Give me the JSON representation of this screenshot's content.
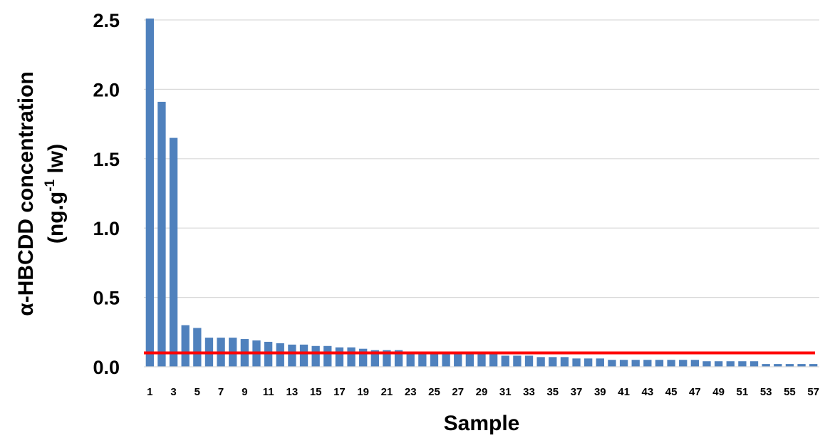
{
  "chart_data": {
    "type": "bar",
    "title": "",
    "xlabel": "Sample",
    "ylabel_line1": "α-HBCDD concentration",
    "ylabel_line2_prefix": "(ng.g",
    "ylabel_line2_sup": "-1",
    "ylabel_line2_suffix": " lw)",
    "ylim": [
      0,
      2.5
    ],
    "yticks": [
      "0.0",
      "0.5",
      "1.0",
      "1.5",
      "2.0",
      "2.5"
    ],
    "grid": true,
    "legend": false,
    "categories": [
      "1",
      "2",
      "3",
      "4",
      "5",
      "6",
      "7",
      "8",
      "9",
      "10",
      "11",
      "12",
      "13",
      "14",
      "15",
      "16",
      "17",
      "18",
      "19",
      "20",
      "21",
      "22",
      "23",
      "24",
      "25",
      "26",
      "27",
      "28",
      "29",
      "30",
      "31",
      "32",
      "33",
      "34",
      "35",
      "36",
      "37",
      "38",
      "39",
      "40",
      "41",
      "42",
      "43",
      "44",
      "45",
      "46",
      "47",
      "48",
      "49",
      "50",
      "51",
      "52",
      "53",
      "54",
      "55",
      "56",
      "57"
    ],
    "xtick_labels": [
      "1",
      "3",
      "5",
      "7",
      "9",
      "11",
      "13",
      "15",
      "17",
      "19",
      "21",
      "23",
      "25",
      "27",
      "29",
      "31",
      "33",
      "35",
      "37",
      "39",
      "41",
      "43",
      "45",
      "47",
      "49",
      "51",
      "53",
      "55",
      "57"
    ],
    "values": [
      2.51,
      1.91,
      1.65,
      0.3,
      0.28,
      0.21,
      0.21,
      0.21,
      0.2,
      0.19,
      0.18,
      0.17,
      0.16,
      0.16,
      0.15,
      0.15,
      0.14,
      0.14,
      0.13,
      0.12,
      0.12,
      0.12,
      0.11,
      0.11,
      0.11,
      0.1,
      0.1,
      0.1,
      0.09,
      0.09,
      0.08,
      0.08,
      0.08,
      0.07,
      0.07,
      0.07,
      0.06,
      0.06,
      0.06,
      0.05,
      0.05,
      0.05,
      0.05,
      0.05,
      0.05,
      0.05,
      0.05,
      0.04,
      0.04,
      0.04,
      0.04,
      0.04,
      0.02,
      0.02,
      0.02,
      0.02,
      0.02
    ],
    "reference_line": {
      "value": 0.1,
      "color": "#ff0000"
    },
    "bar_color": "#4f81bd",
    "grid_color": "#d9d9d9"
  }
}
